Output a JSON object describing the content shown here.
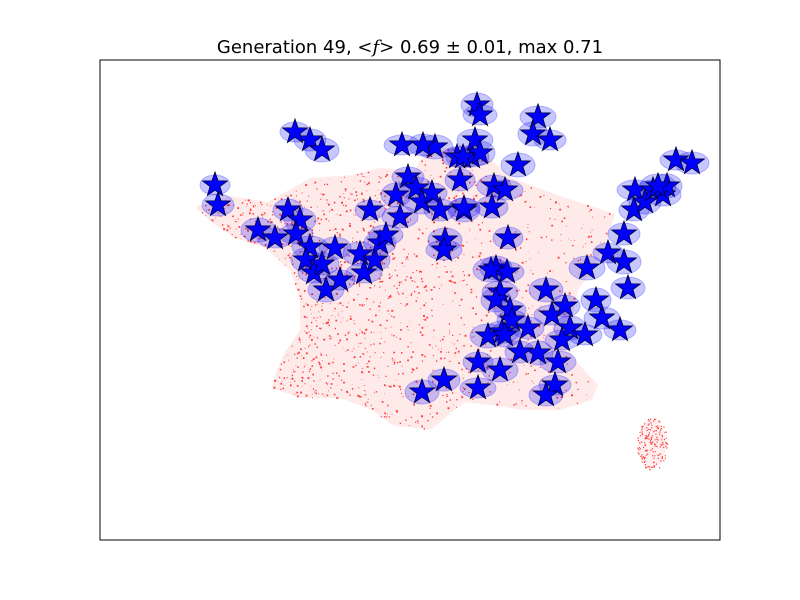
{
  "chart_data": {
    "type": "scatter",
    "title": "Generation 49, <f>  0.69 ± 0.01, max 0.71",
    "title_parts": {
      "prefix": "Generation 49, ",
      "mean_symbol": "<f>",
      "suffix": "  0.69 ± 0.01, max 0.71"
    },
    "xlabel": "",
    "ylabel": "",
    "xlim": [
      0,
      620
    ],
    "ylim": [
      0,
      480
    ],
    "grid": false,
    "axes_ticks": false,
    "colors": {
      "population_density": "#ff0000",
      "markers": "#0000ff",
      "marker_edge": "#000033",
      "coverage_halo": "#0000ff"
    },
    "series": [
      {
        "marker": "star",
        "points": [
          [
            115,
            355
          ],
          [
            118,
            335
          ],
          [
            158,
            310
          ],
          [
            175,
            302
          ],
          [
            188,
            330
          ],
          [
            200,
            320
          ],
          [
            196,
            306
          ],
          [
            210,
            293
          ],
          [
            206,
            280
          ],
          [
            214,
            267
          ],
          [
            222,
            276
          ],
          [
            226,
            250
          ],
          [
            240,
            260
          ],
          [
            235,
            292
          ],
          [
            260,
            286
          ],
          [
            264,
            267
          ],
          [
            275,
            280
          ],
          [
            280,
            297
          ],
          [
            286,
            305
          ],
          [
            300,
            323
          ],
          [
            296,
            345
          ],
          [
            308,
            363
          ],
          [
            316,
            352
          ],
          [
            322,
            338
          ],
          [
            332,
            347
          ],
          [
            340,
            330
          ],
          [
            345,
            300
          ],
          [
            344,
            290
          ],
          [
            360,
            360
          ],
          [
            364,
            330
          ],
          [
            372,
            383
          ],
          [
            375,
            400
          ],
          [
            380,
            387
          ],
          [
            364,
            332
          ],
          [
            394,
            354
          ],
          [
            335,
            393
          ],
          [
            357,
            383
          ],
          [
            392,
            333
          ],
          [
            418,
            375
          ],
          [
            405,
            350
          ],
          [
            408,
            302
          ],
          [
            396,
            272
          ],
          [
            407,
            268
          ],
          [
            400,
            248
          ],
          [
            396,
            240
          ],
          [
            410,
            230
          ],
          [
            402,
            208
          ],
          [
            388,
            204
          ],
          [
            412,
            220
          ],
          [
            428,
            212
          ],
          [
            446,
            250
          ],
          [
            452,
            225
          ],
          [
            465,
            234
          ],
          [
            470,
            212
          ],
          [
            462,
            200
          ],
          [
            458,
            178
          ],
          [
            438,
            187
          ],
          [
            455,
            155
          ],
          [
            446,
            145
          ],
          [
            400,
            170
          ],
          [
            378,
            178
          ],
          [
            344,
            160
          ],
          [
            322,
            148
          ],
          [
            378,
            152
          ],
          [
            420,
            188
          ],
          [
            405,
            205
          ],
          [
            485,
            205
          ],
          [
            502,
            222
          ],
          [
            496,
            240
          ],
          [
            520,
            210
          ],
          [
            528,
            252
          ],
          [
            487,
            272
          ],
          [
            508,
            287
          ],
          [
            524,
            306
          ],
          [
            524,
            278
          ],
          [
            535,
            350
          ],
          [
            534,
            330
          ],
          [
            545,
            338
          ],
          [
            553,
            350
          ],
          [
            563,
            345
          ],
          [
            567,
            354
          ],
          [
            576,
            380
          ],
          [
            592,
            377
          ],
          [
            558,
            354
          ],
          [
            270,
            330
          ],
          [
            210,
            400
          ],
          [
            222,
            390
          ],
          [
            302,
            395
          ],
          [
            323,
            395
          ],
          [
            377,
            435
          ],
          [
            380,
            425
          ],
          [
            438,
            423
          ],
          [
            433,
            406
          ],
          [
            450,
            400
          ],
          [
            363,
            383
          ],
          [
            391,
            270
          ],
          [
            195,
            408
          ]
        ]
      }
    ]
  }
}
